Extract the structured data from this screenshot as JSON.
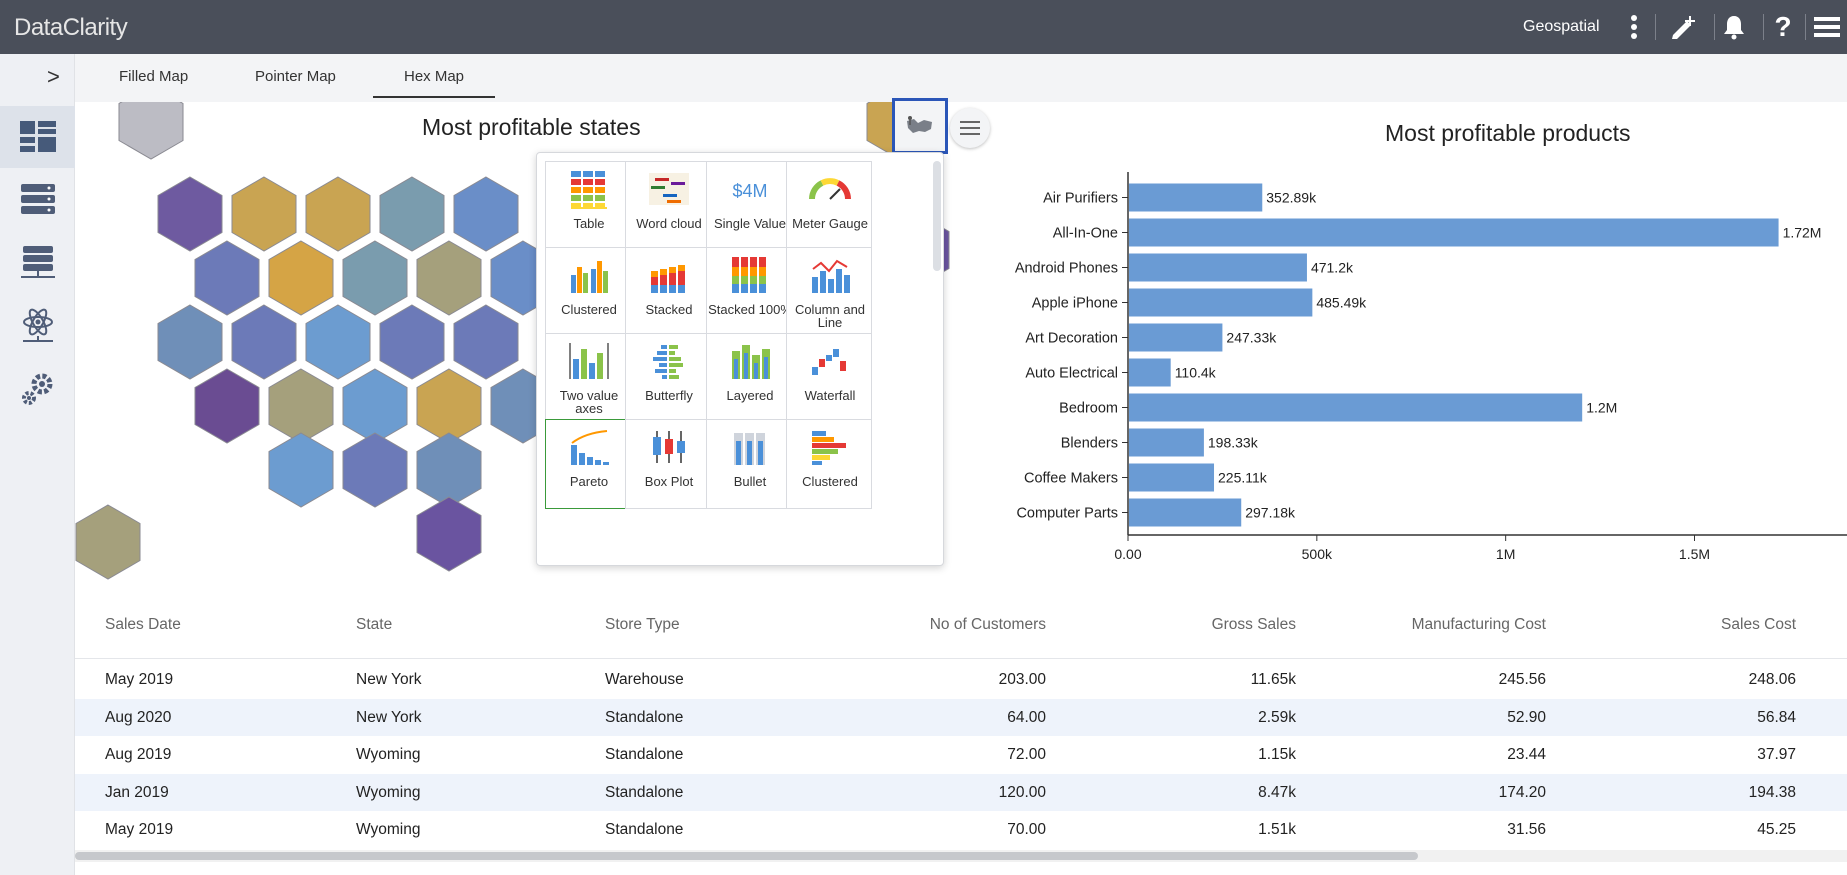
{
  "app": {
    "title": "DataClarity",
    "section": "Geospatial"
  },
  "topbar_icons": [
    "more-vert-icon",
    "edit-icon",
    "bell-icon",
    "help-icon",
    "hamburger-icon"
  ],
  "sidebar": {
    "collapse_label": ">",
    "items": [
      {
        "name": "dashboards-icon",
        "active": true
      },
      {
        "name": "data-sources-icon",
        "active": false
      },
      {
        "name": "data-models-icon",
        "active": false
      },
      {
        "name": "data-science-icon",
        "active": false
      },
      {
        "name": "settings-icon",
        "active": false
      }
    ]
  },
  "tabs": [
    {
      "label": "Filled Map"
    },
    {
      "label": "Pointer Map"
    },
    {
      "label": "Hex Map"
    }
  ],
  "active_tab": "Hex Map",
  "map": {
    "title": "Most profitable states"
  },
  "visual_picker": {
    "tiles": [
      {
        "label": "Table",
        "icon": "table-icon"
      },
      {
        "label": "Word cloud",
        "icon": "word-cloud-icon"
      },
      {
        "label": "Single Value",
        "icon": "single-value-icon",
        "glyph": "$4M"
      },
      {
        "label": "Meter Gauge",
        "icon": "meter-gauge-icon"
      },
      {
        "label": "Clustered",
        "icon": "clustered-column-icon"
      },
      {
        "label": "Stacked",
        "icon": "stacked-column-icon"
      },
      {
        "label": "Stacked 100%",
        "icon": "stacked-100-icon"
      },
      {
        "label": "Column and Line",
        "icon": "column-line-icon"
      },
      {
        "label": "Two value axes",
        "icon": "two-axes-icon"
      },
      {
        "label": "Butterfly",
        "icon": "butterfly-icon"
      },
      {
        "label": "Layered",
        "icon": "layered-icon"
      },
      {
        "label": "Waterfall",
        "icon": "waterfall-icon"
      },
      {
        "label": "Pareto",
        "icon": "pareto-icon",
        "selected": true
      },
      {
        "label": "Box Plot",
        "icon": "box-plot-icon"
      },
      {
        "label": "Bullet",
        "icon": "bullet-icon"
      },
      {
        "label": "Clustered",
        "icon": "clustered-bar-icon"
      }
    ]
  },
  "chart_data": {
    "type": "bar",
    "orientation": "horizontal",
    "title": "Most profitable products",
    "categories": [
      "Air Purifiers",
      "All-In-One",
      "Android Phones",
      "Apple iPhone",
      "Art Decoration",
      "Auto Electrical",
      "Bedroom",
      "Blenders",
      "Coffee Makers",
      "Computer Parts"
    ],
    "values": [
      352890,
      1720000,
      471200,
      485490,
      247330,
      110400,
      1200000,
      198330,
      225110,
      297180
    ],
    "data_labels": [
      "352.89k",
      "1.72M",
      "471.2k",
      "485.49k",
      "247.33k",
      "110.4k",
      "1.2M",
      "198.33k",
      "225.11k",
      "297.18k"
    ],
    "xticks": [
      "0.00",
      "500k",
      "1M",
      "1.5M"
    ],
    "xlim": [
      0,
      1880000
    ],
    "color": "#6a9bd4"
  },
  "table": {
    "columns": [
      "Sales Date",
      "State",
      "Store Type",
      "No of Customers",
      "Gross Sales",
      "Manufacturing Cost",
      "Sales Cost"
    ],
    "rows": [
      [
        "May 2019",
        "New York",
        "Warehouse",
        "203.00",
        "11.65k",
        "245.56",
        "248.06"
      ],
      [
        "Aug 2020",
        "New York",
        "Standalone",
        "64.00",
        "2.59k",
        "52.90",
        "56.84"
      ],
      [
        "Aug 2019",
        "Wyoming",
        "Standalone",
        "72.00",
        "1.15k",
        "23.44",
        "37.97"
      ],
      [
        "Jan 2019",
        "Wyoming",
        "Standalone",
        "120.00",
        "8.47k",
        "174.20",
        "194.38"
      ],
      [
        "May 2019",
        "Wyoming",
        "Standalone",
        "70.00",
        "1.51k",
        "31.56",
        "45.25"
      ]
    ]
  },
  "colors": {
    "topbar": "#4a4f5a",
    "bar": "#6a9bd4",
    "selected_border": "#2b56b8"
  }
}
